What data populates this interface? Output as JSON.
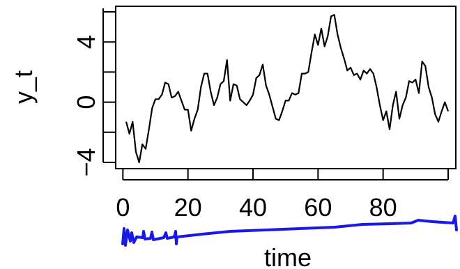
{
  "chart_data": {
    "type": "line",
    "xlabel": "time",
    "ylabel": "y_t",
    "xlim": [
      0,
      100
    ],
    "ylim": [
      -4,
      6
    ],
    "xticks": [
      0,
      20,
      40,
      60,
      80
    ],
    "yticks": [
      -4,
      0,
      4
    ],
    "x_tick_labels": [
      "0",
      "20",
      "40",
      "60",
      "80"
    ],
    "y_tick_labels": [
      "−4",
      "0",
      "4"
    ],
    "grid": false,
    "legend": "none",
    "series": [
      {
        "x": [
          1,
          2,
          3,
          4,
          5,
          6,
          7,
          8,
          9,
          10,
          11,
          12,
          13,
          14,
          15,
          16,
          17,
          18,
          19,
          20,
          21,
          22,
          23,
          24,
          25,
          26,
          27,
          28,
          29,
          30,
          31,
          32,
          33,
          34,
          35,
          36,
          37,
          38,
          39,
          40,
          41,
          42,
          43,
          44,
          45,
          46,
          47,
          48,
          49,
          50,
          51,
          52,
          53,
          54,
          55,
          56,
          57,
          58,
          59,
          60,
          61,
          62,
          63,
          64,
          65,
          66,
          67,
          68,
          69,
          70,
          71,
          72,
          73,
          74,
          75,
          76,
          77,
          78,
          79,
          80,
          81,
          82,
          83,
          84,
          85,
          86,
          87,
          88,
          89,
          90,
          91,
          92,
          93,
          94,
          95,
          96,
          97,
          98,
          99,
          100
        ],
        "y": [
          -1.3,
          -2.1,
          -1.3,
          -3.3,
          -4.0,
          -2.8,
          -3.1,
          -1.8,
          -0.4,
          0.2,
          0.2,
          0.5,
          1.3,
          1.2,
          0.3,
          0.4,
          0.7,
          0.1,
          -0.5,
          -0.5,
          -1.9,
          -1.1,
          -0.5,
          1.0,
          1.9,
          1.9,
          0.7,
          -0.2,
          0.3,
          1.2,
          1.4,
          2.8,
          0.1,
          1.2,
          1.1,
          0.2,
          0.0,
          -0.2,
          0.1,
          0.5,
          1.6,
          1.8,
          2.5,
          1.1,
          0.5,
          -0.3,
          -1.1,
          -1.2,
          -0.6,
          0.1,
          0.1,
          0.6,
          0.5,
          0.6,
          1.9,
          1.9,
          2.0,
          3.3,
          4.5,
          3.8,
          4.9,
          3.7,
          4.4,
          5.7,
          5.8,
          4.5,
          3.6,
          2.9,
          2.1,
          2.3,
          1.8,
          1.9,
          1.5,
          2.1,
          1.9,
          2.2,
          1.9,
          1.0,
          -0.2,
          -1.2,
          -0.6,
          -1.8,
          -0.2,
          0.7,
          -1.1,
          -0.2,
          0.3,
          1.4,
          1.3,
          1.5,
          0.6,
          2.7,
          2.4,
          1.0,
          0.3,
          -0.8,
          -1.3,
          -0.6,
          0.0,
          -0.6
        ]
      }
    ]
  },
  "annotation": {
    "stroke_color": "#1a1ae6"
  }
}
